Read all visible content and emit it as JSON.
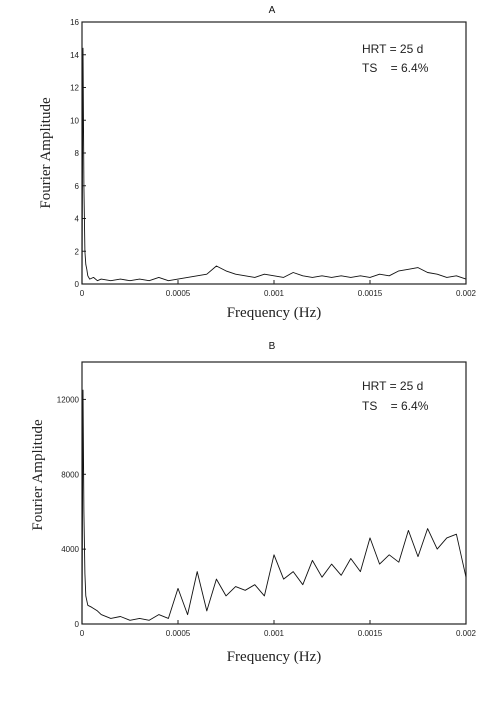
{
  "chart_data": [
    {
      "panel": "A",
      "type": "line",
      "title": "",
      "xlabel": "Frequency (Hz)",
      "ylabel": "Fourier Amplitude",
      "xlim": [
        0,
        0.002
      ],
      "ylim": [
        0,
        16
      ],
      "x_ticks": [
        0,
        0.0005,
        0.001,
        0.0015,
        0.002
      ],
      "x_tick_labels": [
        "0",
        "0.0005",
        "0.001",
        "0.0015",
        "0.002"
      ],
      "y_ticks": [
        0,
        2,
        4,
        6,
        8,
        10,
        12,
        14,
        16
      ],
      "y_tick_labels": [
        "0",
        "2",
        "4",
        "6",
        "8",
        "10",
        "12",
        "14",
        "16"
      ],
      "annotations": [
        "HRT = 25 d",
        "TS    = 6.4%"
      ],
      "grid": false,
      "series": [
        {
          "x": [
            0,
            5e-06,
            1e-05,
            1.5e-05,
            2e-05,
            2.5e-05,
            3e-05,
            4e-05,
            6e-05,
            8e-05,
            0.0001,
            0.00015,
            0.0002,
            0.00025,
            0.0003,
            0.00035,
            0.0004,
            0.00045,
            0.0005,
            0.00055,
            0.0006,
            0.00065,
            0.0007,
            0.00075,
            0.0008,
            0.00085,
            0.0009,
            0.00095,
            0.001,
            0.00105,
            0.0011,
            0.00115,
            0.0012,
            0.00125,
            0.0013,
            0.00135,
            0.0014,
            0.00145,
            0.0015,
            0.00155,
            0.0016,
            0.00165,
            0.0017,
            0.00175,
            0.0018,
            0.00185,
            0.0019,
            0.00195,
            0.002
          ],
          "y": [
            0,
            14.4,
            6.0,
            2.0,
            1.2,
            0.9,
            0.5,
            0.3,
            0.4,
            0.2,
            0.3,
            0.2,
            0.3,
            0.2,
            0.3,
            0.2,
            0.4,
            0.2,
            0.3,
            0.4,
            0.5,
            0.6,
            1.1,
            0.8,
            0.6,
            0.5,
            0.4,
            0.6,
            0.5,
            0.4,
            0.7,
            0.5,
            0.4,
            0.5,
            0.4,
            0.5,
            0.4,
            0.5,
            0.4,
            0.6,
            0.5,
            0.8,
            0.9,
            1.0,
            0.7,
            0.6,
            0.4,
            0.5,
            0.3
          ]
        }
      ]
    },
    {
      "panel": "B",
      "type": "line",
      "title": "",
      "xlabel": "Frequency (Hz)",
      "ylabel": "Fourier Amplitude",
      "xlim": [
        0,
        0.002
      ],
      "ylim": [
        0,
        14000
      ],
      "x_ticks": [
        0,
        0.0005,
        0.001,
        0.0015,
        0.002
      ],
      "x_tick_labels": [
        "0",
        "0.0005",
        "0.001",
        "0.0015",
        "0.002"
      ],
      "y_ticks": [
        0,
        4000,
        8000,
        12000
      ],
      "y_tick_labels": [
        "0",
        "4000",
        "8000",
        "12000"
      ],
      "annotations": [
        "HRT = 25 d",
        "TS    = 6.4%"
      ],
      "grid": false,
      "series": [
        {
          "x": [
            0,
            5e-06,
            1e-05,
            1.5e-05,
            2e-05,
            3e-05,
            5e-05,
            8e-05,
            0.0001,
            0.00015,
            0.0002,
            0.00025,
            0.0003,
            0.00035,
            0.0004,
            0.00045,
            0.0005,
            0.00055,
            0.0006,
            0.00065,
            0.0007,
            0.00075,
            0.0008,
            0.00085,
            0.0009,
            0.00095,
            0.001,
            0.00105,
            0.0011,
            0.00115,
            0.0012,
            0.00125,
            0.0013,
            0.00135,
            0.0014,
            0.00145,
            0.0015,
            0.00155,
            0.0016,
            0.00165,
            0.0017,
            0.00175,
            0.0018,
            0.00185,
            0.0019,
            0.00195,
            0.002
          ],
          "y": [
            0,
            12500,
            6000,
            2700,
            1500,
            1000,
            900,
            700,
            500,
            300,
            400,
            200,
            300,
            200,
            500,
            300,
            1900,
            500,
            2800,
            700,
            2400,
            1500,
            2000,
            1800,
            2100,
            1500,
            3700,
            2400,
            2800,
            2100,
            3400,
            2500,
            3200,
            2600,
            3500,
            2800,
            4600,
            3200,
            3700,
            3300,
            5000,
            3600,
            5100,
            4000,
            4600,
            4800,
            2500
          ]
        }
      ]
    }
  ]
}
